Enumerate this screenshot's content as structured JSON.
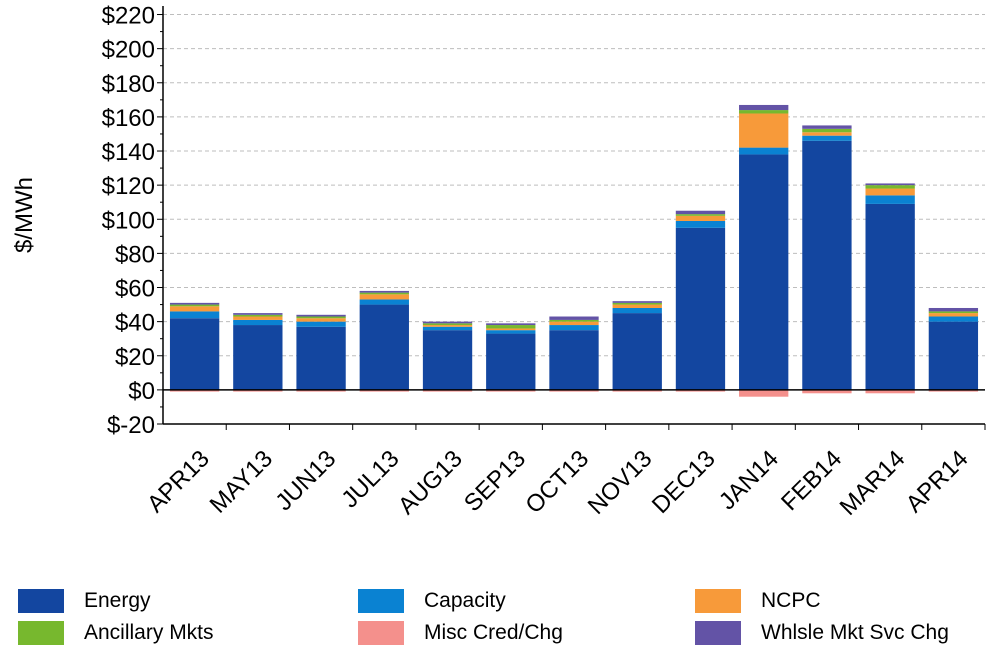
{
  "chart_data": {
    "type": "bar",
    "stacked": true,
    "ylabel": "$/MWh",
    "ylim": [
      -20,
      225
    ],
    "yticks": [
      "$-20",
      "$0",
      "$20",
      "$40",
      "$60",
      "$80",
      "$100",
      "$120",
      "$140",
      "$160",
      "$180",
      "$200",
      "$220"
    ],
    "ytick_values": [
      -20,
      0,
      20,
      40,
      60,
      80,
      100,
      120,
      140,
      160,
      180,
      200,
      220
    ],
    "grid": true,
    "legend_position": "bottom",
    "categories": [
      "APR13",
      "MAY13",
      "JUN13",
      "JUL13",
      "AUG13",
      "SEP13",
      "OCT13",
      "NOV13",
      "DEC13",
      "JAN14",
      "FEB14",
      "MAR14",
      "APR14"
    ],
    "series": [
      {
        "name": "Energy",
        "color": "#1346a0",
        "values": [
          42,
          38,
          37,
          50,
          35,
          33,
          35,
          45,
          95,
          138,
          146,
          109,
          40
        ]
      },
      {
        "name": "Capacity",
        "color": "#0a82d2",
        "values": [
          4,
          3,
          3,
          3,
          2,
          2,
          3,
          3,
          4,
          4,
          3,
          5,
          3
        ]
      },
      {
        "name": "NCPC",
        "color": "#f79a3a",
        "values": [
          3,
          2,
          2,
          3,
          1,
          1,
          2,
          2,
          3,
          20,
          2,
          4,
          2
        ]
      },
      {
        "name": "Ancillary Mkts",
        "color": "#77b82e",
        "values": [
          1,
          1,
          1,
          1,
          1,
          2,
          1,
          1,
          1,
          2,
          2,
          2,
          1
        ]
      },
      {
        "name": "Misc Cred/Chg",
        "color": "#f4908c",
        "values": [
          -1,
          -1,
          -1,
          -1,
          -1,
          -1,
          -1,
          -1,
          -1,
          -4,
          -2,
          -2,
          -1
        ]
      },
      {
        "name": "Whlsle Mkt Svc Chg",
        "color": "#6353a6",
        "values": [
          1,
          1,
          1,
          1,
          1,
          1,
          2,
          1,
          2,
          3,
          2,
          1,
          2
        ]
      }
    ]
  }
}
